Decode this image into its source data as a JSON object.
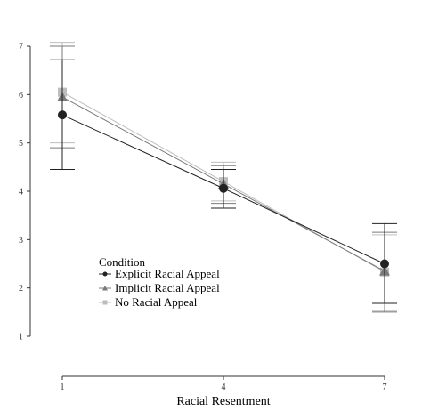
{
  "chart_data": {
    "type": "line",
    "title": "",
    "xlabel": "Racial Resentment",
    "ylabel": "",
    "x": [
      1,
      4,
      7
    ],
    "xticks": [
      1,
      4,
      7
    ],
    "yticks": [
      1,
      2,
      3,
      4,
      5,
      6,
      7
    ],
    "xlim": [
      1,
      7
    ],
    "ylim": [
      1,
      7
    ],
    "grid": false,
    "legend": {
      "title": "Condition",
      "placement": "bottom-left"
    },
    "series": [
      {
        "name": "Explicit Racial Appeal",
        "color": "#222222",
        "marker": "circle",
        "values": [
          5.58,
          4.06,
          2.5
        ],
        "ci_low": [
          4.45,
          3.65,
          1.68
        ],
        "ci_high": [
          6.72,
          4.45,
          3.33
        ]
      },
      {
        "name": "Implicit Racial Appeal",
        "color": "#7a7a7a",
        "marker": "triangle",
        "values": [
          5.95,
          4.15,
          2.35
        ],
        "ci_low": [
          4.9,
          3.75,
          1.5
        ],
        "ci_high": [
          7.0,
          4.53,
          3.15
        ]
      },
      {
        "name": "No Racial Appeal",
        "color": "#bdbdbd",
        "marker": "square",
        "values": [
          6.05,
          4.2,
          2.33
        ],
        "ci_low": [
          5.0,
          3.8,
          1.52
        ],
        "ci_high": [
          7.08,
          4.6,
          3.1
        ]
      }
    ]
  }
}
